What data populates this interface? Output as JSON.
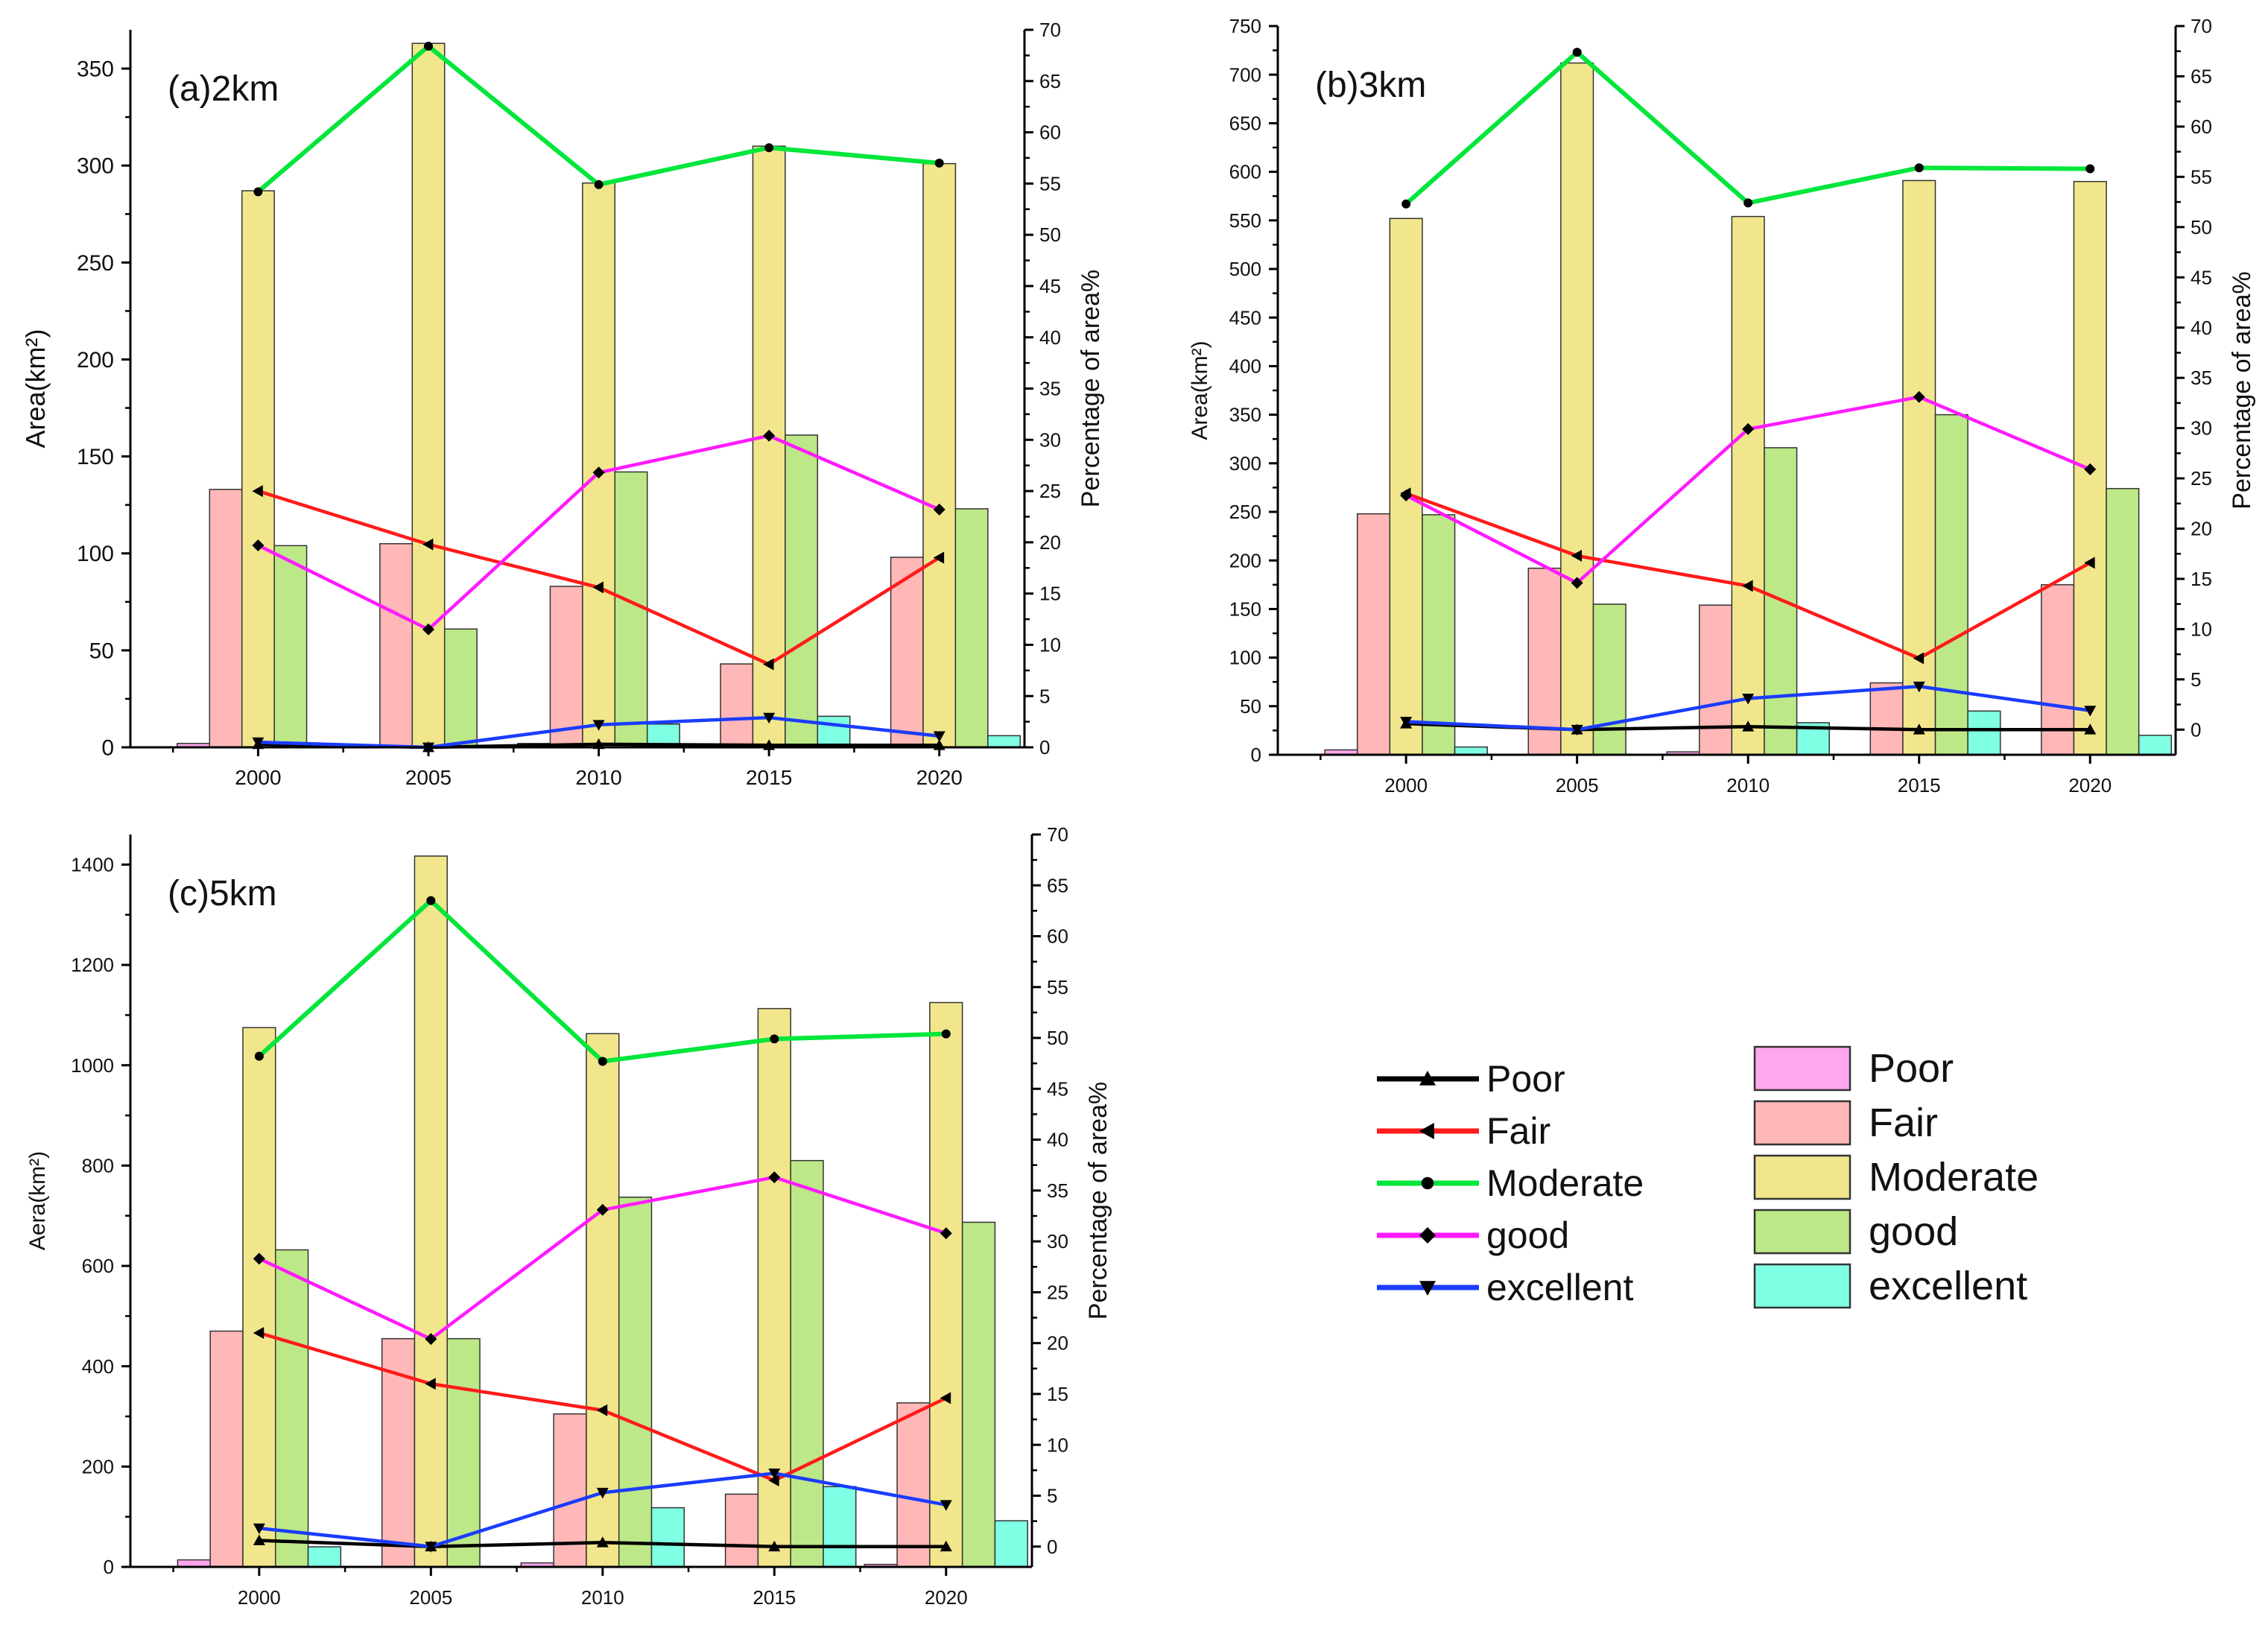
{
  "x_categories": [
    "2000",
    "2005",
    "2010",
    "2015",
    "2020"
  ],
  "colors": {
    "poor_line": "#000000",
    "fair_line": "#ff1a1a",
    "moderate_line": "#00e63a",
    "good_line": "#ff1aff",
    "excellent_line": "#1a3cff",
    "poor_bar": "#ffa6ee",
    "fair_bar": "#ffb7b7",
    "moderate_bar": "#f1e68c",
    "good_bar": "#bde887",
    "excellent_bar": "#7fffe3"
  },
  "legend": {
    "lines": [
      {
        "key": "poor",
        "label": "Poor",
        "marker": "triangle-up"
      },
      {
        "key": "fair",
        "label": "Fair",
        "marker": "triangle-left"
      },
      {
        "key": "moderate",
        "label": "Moderate",
        "marker": "circle"
      },
      {
        "key": "good",
        "label": "good",
        "marker": "diamond"
      },
      {
        "key": "excellent",
        "label": "excellent",
        "marker": "triangle-down"
      }
    ],
    "bars": [
      {
        "key": "poor",
        "label": "Poor"
      },
      {
        "key": "fair",
        "label": "Fair"
      },
      {
        "key": "moderate",
        "label": "Moderate"
      },
      {
        "key": "good",
        "label": "good"
      },
      {
        "key": "excellent",
        "label": "excellent"
      }
    ]
  },
  "chart_data": [
    {
      "type": "bar+line",
      "title": "(a)2km",
      "ylabel_left": "Area(km²)",
      "ylabel_right": "Percentage of area%",
      "ylim_left": [
        0,
        370
      ],
      "yticks_left": [
        0,
        50,
        100,
        150,
        200,
        250,
        300,
        350
      ],
      "ylim_right": [
        0,
        70
      ],
      "yticks_right": [
        0,
        5,
        10,
        15,
        20,
        25,
        30,
        35,
        40,
        45,
        50,
        55,
        60,
        65,
        70
      ],
      "bars": {
        "poor": [
          2,
          0,
          2,
          1,
          1
        ],
        "fair": [
          133,
          105,
          83,
          43,
          98
        ],
        "moderate": [
          287,
          363,
          291,
          310,
          301
        ],
        "good": [
          104,
          61,
          142,
          161,
          123
        ],
        "excellent": [
          1,
          0,
          12,
          16,
          6
        ]
      },
      "percent": {
        "poor": [
          0.3,
          0,
          0.3,
          0.2,
          0.2
        ],
        "fair": [
          25,
          19.8,
          15.6,
          8.1,
          18.5
        ],
        "moderate": [
          54.2,
          68.4,
          54.9,
          58.5,
          57
        ],
        "good": [
          19.7,
          11.5,
          26.8,
          30.4,
          23.2
        ],
        "excellent": [
          0.5,
          0,
          2.2,
          2.9,
          1.1
        ]
      }
    },
    {
      "type": "bar+line",
      "title": "(b)3km",
      "ylabel_left": "Area(km²)",
      "ylabel_right": "Percentage of area%",
      "ylim_left": [
        0,
        750
      ],
      "yticks_left": [
        0,
        50,
        100,
        150,
        200,
        250,
        300,
        350,
        400,
        450,
        500,
        550,
        600,
        650,
        700,
        750
      ],
      "ylim_right": [
        -2.5,
        70
      ],
      "yticks_right": [
        0,
        5,
        10,
        15,
        20,
        25,
        30,
        35,
        40,
        45,
        50,
        55,
        60,
        65,
        70
      ],
      "bars": {
        "poor": [
          5,
          0,
          3,
          0,
          0
        ],
        "fair": [
          248,
          192,
          154,
          74,
          175
        ],
        "moderate": [
          552,
          712,
          554,
          591,
          590
        ],
        "good": [
          247,
          155,
          316,
          350,
          274
        ],
        "excellent": [
          8,
          0,
          33,
          45,
          20
        ]
      },
      "percent": {
        "poor": [
          0.6,
          0,
          0.3,
          0,
          0
        ],
        "fair": [
          23.5,
          17.3,
          14.3,
          7.1,
          16.6
        ],
        "moderate": [
          52.3,
          67.4,
          52.4,
          55.9,
          55.8
        ],
        "good": [
          23.3,
          14.6,
          29.9,
          33.1,
          25.9
        ],
        "excellent": [
          0.8,
          0,
          3.1,
          4.3,
          1.9
        ]
      }
    },
    {
      "type": "bar+line",
      "title": "(c)5km",
      "ylabel_left": "Aera(km²)",
      "ylabel_right": "Percentage of area%",
      "ylim_left": [
        0,
        1460
      ],
      "yticks_left": [
        0,
        200,
        400,
        600,
        800,
        1000,
        1200,
        1400
      ],
      "ylim_right": [
        -2,
        70
      ],
      "yticks_right": [
        0,
        5,
        10,
        15,
        20,
        25,
        30,
        35,
        40,
        45,
        50,
        55,
        60,
        65,
        70
      ],
      "bars": {
        "poor": [
          14,
          0,
          8,
          0,
          5
        ],
        "fair": [
          470,
          455,
          305,
          145,
          327
        ],
        "moderate": [
          1075,
          1417,
          1063,
          1113,
          1125
        ],
        "good": [
          632,
          455,
          737,
          810,
          687
        ],
        "excellent": [
          40,
          0,
          118,
          160,
          92
        ]
      },
      "percent": {
        "poor": [
          0.6,
          0,
          0.4,
          0,
          0
        ],
        "fair": [
          21,
          16,
          13.4,
          6.5,
          14.6
        ],
        "moderate": [
          48.2,
          63.5,
          47.7,
          49.9,
          50.4
        ],
        "good": [
          28.3,
          20.4,
          33.1,
          36.3,
          30.8
        ],
        "excellent": [
          1.8,
          0,
          5.3,
          7.2,
          4.1
        ]
      }
    }
  ]
}
